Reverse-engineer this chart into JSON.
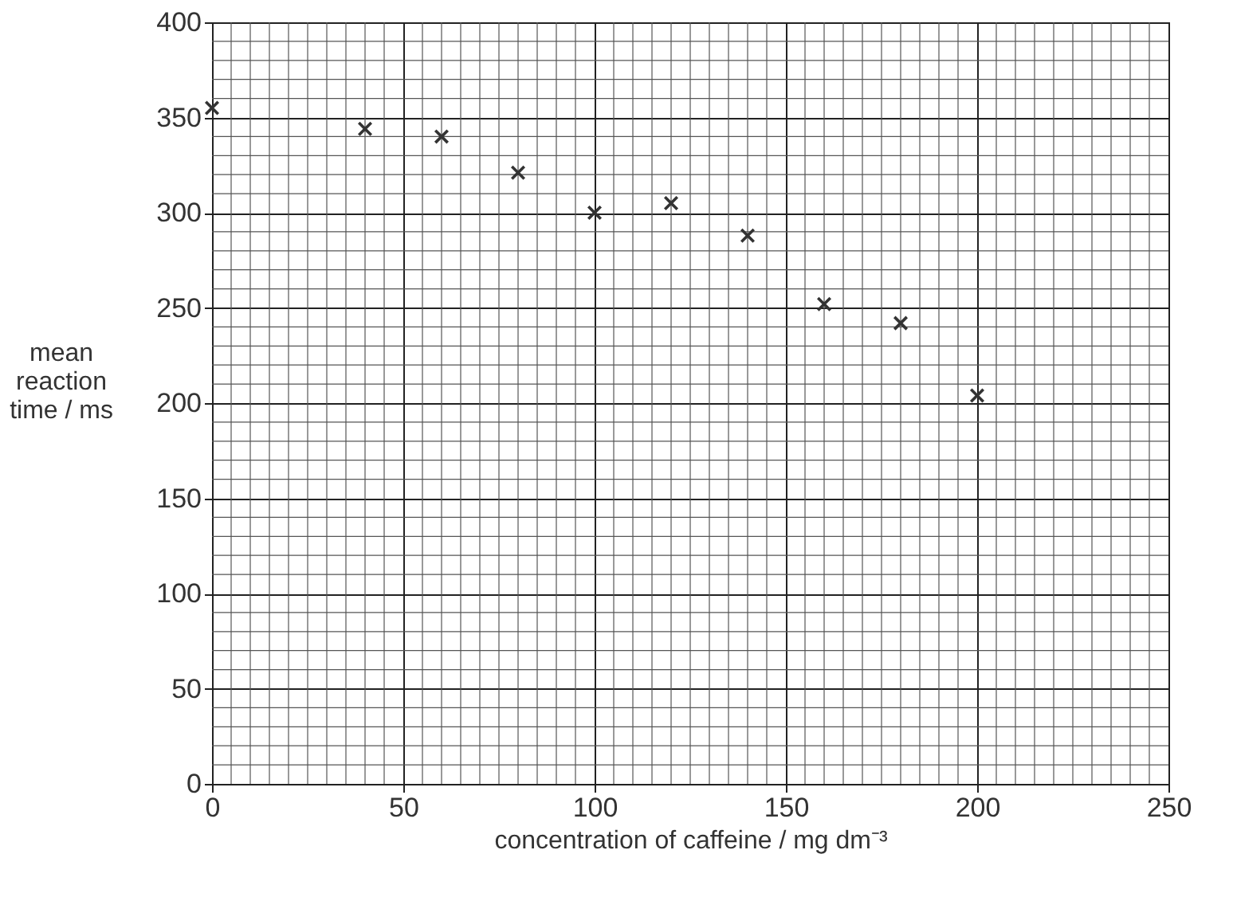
{
  "chart_data": {
    "type": "scatter",
    "xlabel": "concentration of caffeine / mg dm⁻³",
    "ylabel": "mean reaction time / ms",
    "x": [
      0,
      40,
      60,
      80,
      100,
      120,
      140,
      160,
      180,
      200
    ],
    "series": [
      {
        "color": "#333333",
        "values": [
          355,
          344,
          340,
          321,
          300,
          305,
          288,
          252,
          242,
          204
        ]
      }
    ],
    "xlim": [
      0,
      250
    ],
    "xticks": [
      0,
      50,
      100,
      150,
      200,
      250
    ],
    "ylim": [
      0,
      400
    ],
    "yticks": [
      0,
      50,
      100,
      150,
      200,
      250,
      300,
      350,
      400
    ],
    "grid": true,
    "marker": "cross"
  }
}
